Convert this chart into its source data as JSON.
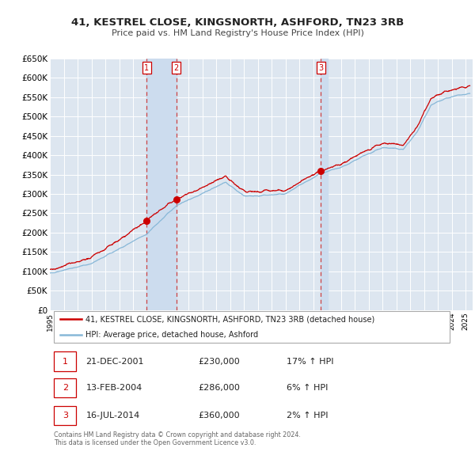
{
  "title": "41, KESTREL CLOSE, KINGSNORTH, ASHFORD, TN23 3RB",
  "subtitle": "Price paid vs. HM Land Registry's House Price Index (HPI)",
  "bg_color": "#ffffff",
  "plot_bg_color": "#dde6f0",
  "grid_color": "#ffffff",
  "red_line_color": "#cc0000",
  "blue_line_color": "#88b8d8",
  "sale_marker_color": "#cc0000",
  "vline_color": "#cc4444",
  "vline_shade_color": "#ccdcee",
  "ylim": [
    0,
    650000
  ],
  "yticks": [
    0,
    50000,
    100000,
    150000,
    200000,
    250000,
    300000,
    350000,
    400000,
    450000,
    500000,
    550000,
    600000,
    650000
  ],
  "ytick_labels": [
    "£0",
    "£50K",
    "£100K",
    "£150K",
    "£200K",
    "£250K",
    "£300K",
    "£350K",
    "£400K",
    "£450K",
    "£500K",
    "£550K",
    "£600K",
    "£650K"
  ],
  "xlim_start": 1995.0,
  "xlim_end": 2025.5,
  "xtick_years": [
    1995,
    1996,
    1997,
    1998,
    1999,
    2000,
    2001,
    2002,
    2003,
    2004,
    2005,
    2006,
    2007,
    2008,
    2009,
    2010,
    2011,
    2012,
    2013,
    2014,
    2015,
    2016,
    2017,
    2018,
    2019,
    2020,
    2021,
    2022,
    2023,
    2024,
    2025
  ],
  "sale1_x": 2001.97,
  "sale1_y": 230000,
  "sale2_x": 2004.12,
  "sale2_y": 286000,
  "sale3_x": 2014.54,
  "sale3_y": 360000,
  "legend_red_label": "41, KESTREL CLOSE, KINGSNORTH, ASHFORD, TN23 3RB (detached house)",
  "legend_blue_label": "HPI: Average price, detached house, Ashford",
  "table_rows": [
    {
      "num": "1",
      "date": "21-DEC-2001",
      "price": "£230,000",
      "hpi": "17% ↑ HPI"
    },
    {
      "num": "2",
      "date": "13-FEB-2004",
      "price": "£286,000",
      "hpi": "6% ↑ HPI"
    },
    {
      "num": "3",
      "date": "16-JUL-2014",
      "price": "£360,000",
      "hpi": "2% ↑ HPI"
    }
  ],
  "footer": "Contains HM Land Registry data © Crown copyright and database right 2024.\nThis data is licensed under the Open Government Licence v3.0."
}
